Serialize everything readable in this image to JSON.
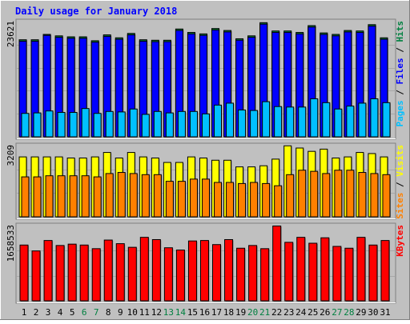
{
  "title": "Daily usage for January 2018",
  "panels": {
    "hits": {
      "max_label": "23621",
      "side_labels": [
        {
          "text": "Pages",
          "color": "#00C0FF"
        },
        {
          "text": " / ",
          "color": "#000000"
        },
        {
          "text": "Files",
          "color": "#0000FF"
        },
        {
          "text": " / ",
          "color": "#000000"
        },
        {
          "text": "Hits",
          "color": "#008040"
        }
      ]
    },
    "visits": {
      "max_label": "3209",
      "side_labels": [
        {
          "text": "Sites",
          "color": "#FF8000"
        },
        {
          "text": " / ",
          "color": "#000000"
        },
        {
          "text": "Visits",
          "color": "#FFFF00"
        }
      ]
    },
    "kbytes": {
      "max_label": "1658533",
      "side_labels": [
        {
          "text": "KBytes",
          "color": "#FF0000"
        }
      ]
    }
  },
  "colors": {
    "background": "#C0C0C0",
    "title": "#0000FF",
    "hits": "#008040",
    "files": "#0000FF",
    "pages": "#00C0FF",
    "visits": "#FFFF00",
    "sites": "#FF8000",
    "kbytes": "#FF0000",
    "weekday_label": "#000000",
    "weekend_label": "#008040"
  },
  "chart_data": {
    "type": "bar",
    "title": "Daily usage for January 2018",
    "categories": [
      "1",
      "2",
      "3",
      "4",
      "5",
      "6",
      "7",
      "8",
      "9",
      "10",
      "11",
      "12",
      "13",
      "14",
      "15",
      "16",
      "17",
      "18",
      "19",
      "20",
      "21",
      "22",
      "23",
      "24",
      "25",
      "26",
      "27",
      "28",
      "29",
      "30",
      "31"
    ],
    "weekend_days": [
      "6",
      "7",
      "13",
      "14",
      "20",
      "21",
      "27",
      "28"
    ],
    "panels": [
      {
        "name": "Hits / Files / Pages",
        "ymax_label": 23621,
        "ylim": [
          0,
          23621
        ],
        "series": [
          {
            "name": "Hits",
            "values": [
              19900,
              19900,
              21000,
              20700,
              20500,
              20500,
              19700,
              20900,
              20300,
              21200,
              19900,
              19800,
              19800,
              22100,
              21400,
              21100,
              22200,
              21800,
              20100,
              20700,
              23400,
              21700,
              21700,
              21400,
              22800,
              21300,
              21000,
              21800,
              21700,
              23000,
              20300
            ]
          },
          {
            "name": "Files",
            "values": [
              19600,
              19600,
              20800,
              20400,
              20200,
              20200,
              19400,
              20600,
              20000,
              20900,
              19600,
              19500,
              19500,
              21800,
              21100,
              20800,
              21900,
              21500,
              19800,
              20400,
              23100,
              21400,
              21400,
              21100,
              22500,
              21000,
              20700,
              21500,
              21400,
              22700,
              20000
            ]
          },
          {
            "name": "Pages",
            "values": [
              4800,
              4900,
              5300,
              5000,
              5000,
              5800,
              4800,
              5200,
              5100,
              5700,
              4600,
              5200,
              4900,
              5200,
              5200,
              4700,
              6500,
              6900,
              5500,
              5400,
              7200,
              6200,
              6100,
              6100,
              7800,
              7000,
              5700,
              6300,
              6900,
              7800,
              7000
            ]
          }
        ]
      },
      {
        "name": "Visits / Sites",
        "ymax_label": 3209,
        "ylim": [
          0,
          3209
        ],
        "series": [
          {
            "name": "Visits",
            "values": [
              2700,
              2700,
              2700,
              2700,
              2650,
              2650,
              2700,
              2900,
              2650,
              2900,
              2700,
              2650,
              2450,
              2450,
              2700,
              2650,
              2550,
              2550,
              2250,
              2250,
              2300,
              2600,
              3200,
              3100,
              2950,
              3050,
              2650,
              2700,
              2900,
              2850,
              2700
            ]
          },
          {
            "name": "Sites",
            "values": [
              1800,
              1800,
              1850,
              1850,
              1850,
              1850,
              1800,
              1950,
              2000,
              1950,
              1900,
              1900,
              1600,
              1600,
              1700,
              1700,
              1550,
              1550,
              1500,
              1550,
              1500,
              1400,
              1900,
              2100,
              2050,
              1950,
              2100,
              2100,
              2000,
              1950,
              1900
            ]
          }
        ]
      },
      {
        "name": "KBytes",
        "ymax_label": 1658533,
        "ylim": [
          0,
          1658533
        ],
        "series": [
          {
            "name": "KBytes",
            "values": [
              1230000,
              1100000,
              1330000,
              1220000,
              1250000,
              1230000,
              1150000,
              1340000,
              1260000,
              1180000,
              1400000,
              1350000,
              1170000,
              1120000,
              1320000,
              1330000,
              1240000,
              1350000,
              1160000,
              1220000,
              1150000,
              1650000,
              1290000,
              1400000,
              1270000,
              1390000,
              1200000,
              1160000,
              1400000,
              1230000,
              1330000
            ]
          }
        ]
      }
    ]
  }
}
